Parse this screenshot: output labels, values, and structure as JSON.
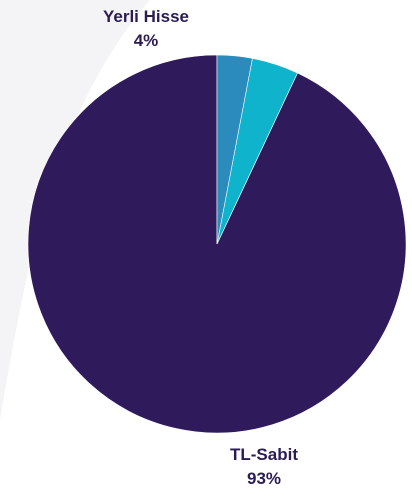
{
  "chart_data": {
    "type": "pie",
    "start_angle_deg": 0,
    "direction": "counterclockwise",
    "slices": [
      {
        "name": "TL-Sabit",
        "value": 93,
        "label_name": "TL-Sabit",
        "label_value": "93%",
        "color": "#2f1b5c",
        "show_label": true
      },
      {
        "name": "Yerli Hisse",
        "value": 4,
        "label_name": "Yerli Hisse",
        "label_value": "4%",
        "color": "#0fb3cc",
        "show_label": true
      },
      {
        "name": "",
        "value": 3,
        "label_name": "",
        "label_value": "",
        "color": "#2c8bbd",
        "show_label": false
      }
    ]
  },
  "colors": {
    "background": "#ffffff",
    "backdrop": "#f4f4f6",
    "label": "#2b1d54"
  }
}
